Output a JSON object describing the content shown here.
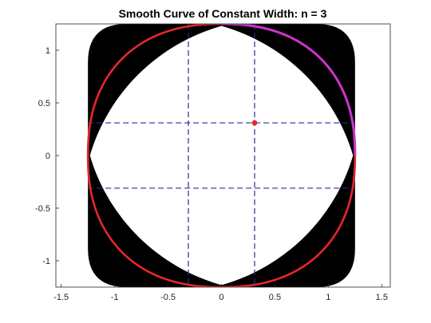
{
  "chart_data": {
    "type": "line",
    "title": "Smooth Curve of Constant Width: n = 3",
    "xlabel": "",
    "ylabel": "",
    "xlim": [
      -1.55,
      1.58
    ],
    "ylim": [
      -1.25,
      1.25
    ],
    "xticks": [
      -1.5,
      -1,
      -0.5,
      0,
      0.5,
      1,
      1.5
    ],
    "yticks": [
      -1,
      -0.5,
      0,
      0.5,
      1
    ],
    "xtick_labels": [
      "-1.5",
      "-1",
      "-0.5",
      "0",
      "0.5",
      "1",
      "1.5"
    ],
    "ytick_labels": [
      "-1",
      "-0.5",
      "0",
      "0.5",
      "1"
    ],
    "grid": false,
    "legend": "none",
    "n": 3,
    "curve_half_width": 1.25,
    "lens_radius": 1.8,
    "dashed_lines": {
      "vertical_x": [
        -0.31,
        0.31
      ],
      "horizontal_y": [
        -0.31,
        0.31
      ]
    },
    "marker_point": {
      "x": 0.31,
      "y": 0.31
    },
    "highlight_arc": {
      "from_deg": 0,
      "to_deg": 90
    },
    "colors": {
      "band": "#000000",
      "curve": "#e8262b",
      "highlight": "#cc33cc",
      "dashed": "#2b2b9e",
      "marker": "#e8262b",
      "axes": "#262626"
    }
  }
}
